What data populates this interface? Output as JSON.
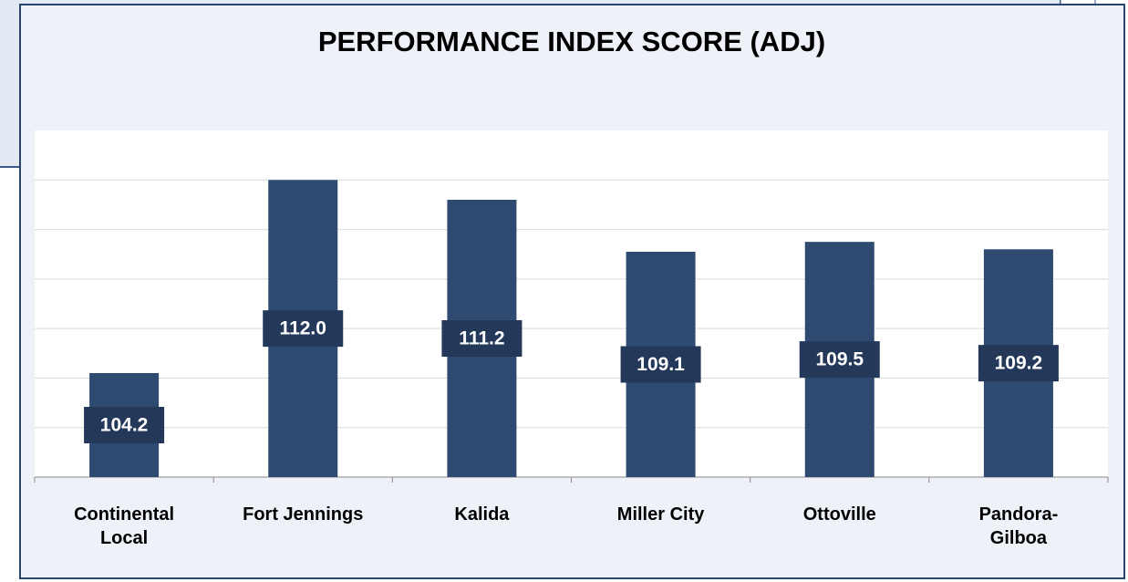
{
  "chart_data": {
    "type": "bar",
    "title": "PERFORMANCE INDEX SCORE (ADJ)",
    "categories": [
      "Continental Local",
      "Fort Jennings",
      "Kalida",
      "Miller City",
      "Ottoville",
      "Pandora-Gilboa"
    ],
    "values": [
      104.2,
      112.0,
      111.2,
      109.1,
      109.5,
      109.2
    ],
    "value_labels": [
      "104.2",
      "112.0",
      "111.2",
      "109.1",
      "109.5",
      "109.2"
    ],
    "color": "#2e4a70",
    "ylim": [
      100,
      114
    ],
    "yticks": [
      100,
      102,
      104,
      106,
      108,
      110,
      112
    ],
    "show_tick_labels": false,
    "grid": true
  }
}
